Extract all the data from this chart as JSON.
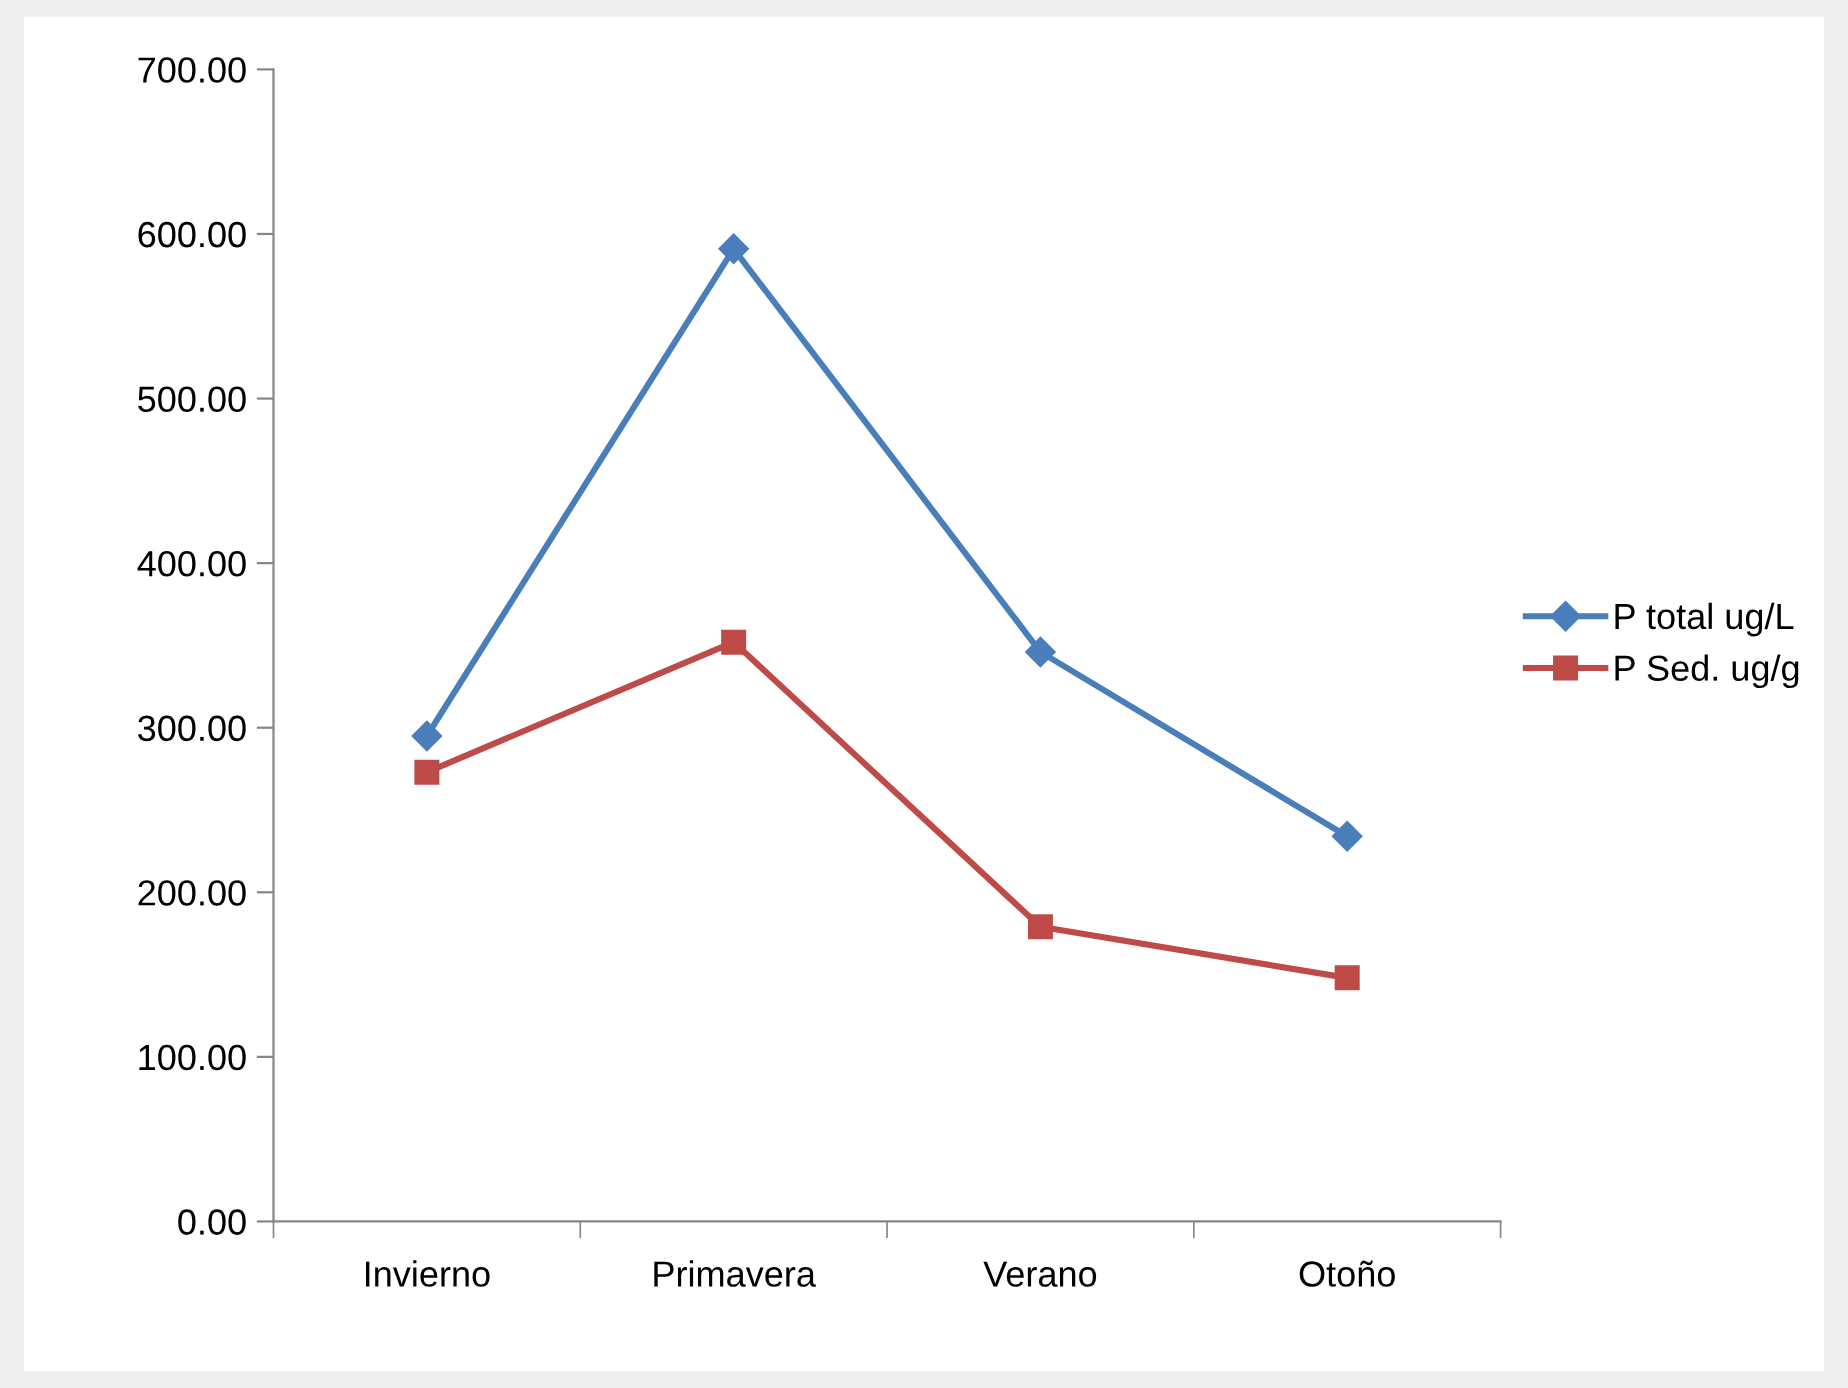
{
  "chart_data": {
    "type": "line",
    "categories": [
      "Invierno",
      "Primavera",
      "Verano",
      "Otoño"
    ],
    "series": [
      {
        "name": "P total ug/L",
        "color": "#4a7ebb",
        "marker": "diamond",
        "values": [
          295,
          591,
          346,
          234
        ]
      },
      {
        "name": "P Sed. ug/g",
        "color": "#be4b48",
        "marker": "square",
        "values": [
          273,
          352,
          179,
          148
        ]
      }
    ],
    "ylim": [
      0,
      700
    ],
    "yticks": [
      {
        "value": 0,
        "label": "0.00"
      },
      {
        "value": 100,
        "label": "100.00"
      },
      {
        "value": 200,
        "label": "200.00"
      },
      {
        "value": 300,
        "label": "300.00"
      },
      {
        "value": 400,
        "label": "400.00"
      },
      {
        "value": 500,
        "label": "500.00"
      },
      {
        "value": 600,
        "label": "600.00"
      },
      {
        "value": 700,
        "label": "700.00"
      }
    ],
    "grid": false,
    "legend": "right",
    "line_style": "solid"
  }
}
